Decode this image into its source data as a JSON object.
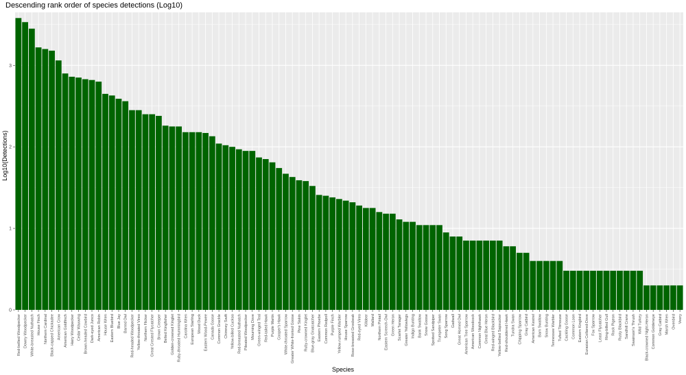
{
  "chart_data": {
    "type": "bar",
    "title": "Descending rank order of species detections (Log10)",
    "xlabel": "Species",
    "ylabel": "Log10(Detections)",
    "ylim": [
      0,
      3.65
    ],
    "yticks": [
      "0",
      "1",
      "2",
      "3"
    ],
    "bar_color": "#006400",
    "panel_color": "#EBEBEB",
    "grid": true,
    "categories": [
      "Red-bellied Woodpecker",
      "Downy Woodpecker",
      "White-breasted Nuthatch",
      "House Finch",
      "Northern Cardinal",
      "Black-capped Chickadee",
      "American Crow",
      "American Goldfinch",
      "Hairy Woodpecker",
      "Cedar Waxwing",
      "Brown-headed Cowbird",
      "Dark-eyed Junco",
      "American Robin",
      "House Wren",
      "Eastern Bluebird",
      "Blue Jay",
      "Barred Owl",
      "Red-headed Woodpecker",
      "Yellow-throated Vireo",
      "Northern Flicker",
      "Great Crested Flycatcher",
      "Brown Creeper",
      "Belted Kingfisher",
      "Golden-crowned Kinglet",
      "Ruby-throated Hummingbird",
      "Carolina Wren",
      "European Starling",
      "Wood Duck",
      "Eastern Wood-Pewee",
      "Canada Goose",
      "Common Grackle",
      "Chimney Swift",
      "Yellow-billed Cuckoo",
      "Red-breasted Nuthatch",
      "Pileated Woodpecker",
      "Mourning Dove",
      "Green-winged Teal",
      "Red-tailed Hawk",
      "Purple Martin",
      "Cooper's Hawk",
      "White-throated Sparrow",
      "Greater White-fronted Goose",
      "Pine Siskin",
      "Ruby-crowned Kinglet",
      "Blue-gray Gnatcatcher",
      "Eastern Phoebe",
      "Common Redpoll",
      "Purple Finch",
      "Yellow-rumped Warbler",
      "House Sparrow",
      "Rose-breasted Grosbeak",
      "Red-eyed Vireo",
      "Killdeer",
      "Mallard",
      "Northern Pintail",
      "Eastern Screech-Owl",
      "Green Heron",
      "Scarlet Tanager",
      "Greater Yellowlegs",
      "Indigo Bunting",
      "Bank Swallow",
      "Snow Goose",
      "Spotted Sandpiper",
      "Trumpeter Swan",
      "Song Sparrow",
      "Gadwall",
      "Great Horned Owl",
      "American Tree Sparrow",
      "American Woodcock",
      "Common Nighthawk",
      "Great Blue Heron",
      "Red-winged Blackbird",
      "Yellow-bellied Sapsucker",
      "Red-shouldered Hawk",
      "Tundra Swan",
      "Chipping Sparrow",
      "Gray Catbird",
      "American Kestrel",
      "Barn Swallow",
      "Snow Bunting",
      "Tennessee Warbler",
      "Tufted Titmouse",
      "Cackling Goose",
      "Common Loon",
      "Eastern Kingbird",
      "Eurasian Collared-Dove",
      "Fox Sparrow",
      "Least Flycatcher",
      "Ring-billed Gull",
      "Rock Pigeon",
      "Rusty Blackbird",
      "Sandhill Crane",
      "Swainson's Thrush",
      "Wild Turkey",
      "Black-crowned Night-Heron",
      "Common Goldeneye",
      "Gray Catbird",
      "Marsh Wren",
      "Ovenbird",
      "Veery"
    ],
    "values": [
      3.58,
      3.53,
      3.45,
      3.22,
      3.2,
      3.18,
      3.06,
      2.9,
      2.86,
      2.85,
      2.83,
      2.82,
      2.8,
      2.65,
      2.63,
      2.59,
      2.56,
      2.45,
      2.45,
      2.4,
      2.4,
      2.38,
      2.26,
      2.25,
      2.25,
      2.18,
      2.18,
      2.18,
      2.17,
      2.13,
      2.04,
      2.02,
      2.0,
      1.97,
      1.95,
      1.95,
      1.87,
      1.85,
      1.81,
      1.74,
      1.67,
      1.63,
      1.59,
      1.58,
      1.52,
      1.41,
      1.4,
      1.38,
      1.36,
      1.34,
      1.32,
      1.28,
      1.25,
      1.25,
      1.2,
      1.18,
      1.18,
      1.11,
      1.08,
      1.08,
      1.04,
      1.04,
      1.04,
      1.04,
      0.95,
      0.9,
      0.9,
      0.85,
      0.85,
      0.85,
      0.85,
      0.85,
      0.85,
      0.78,
      0.78,
      0.7,
      0.7,
      0.6,
      0.6,
      0.6,
      0.6,
      0.6,
      0.48,
      0.48,
      0.48,
      0.48,
      0.48,
      0.48,
      0.48,
      0.48,
      0.48,
      0.48,
      0.48,
      0.48,
      0.3,
      0.3,
      0.3,
      0.3,
      0.3,
      0.3
    ]
  }
}
